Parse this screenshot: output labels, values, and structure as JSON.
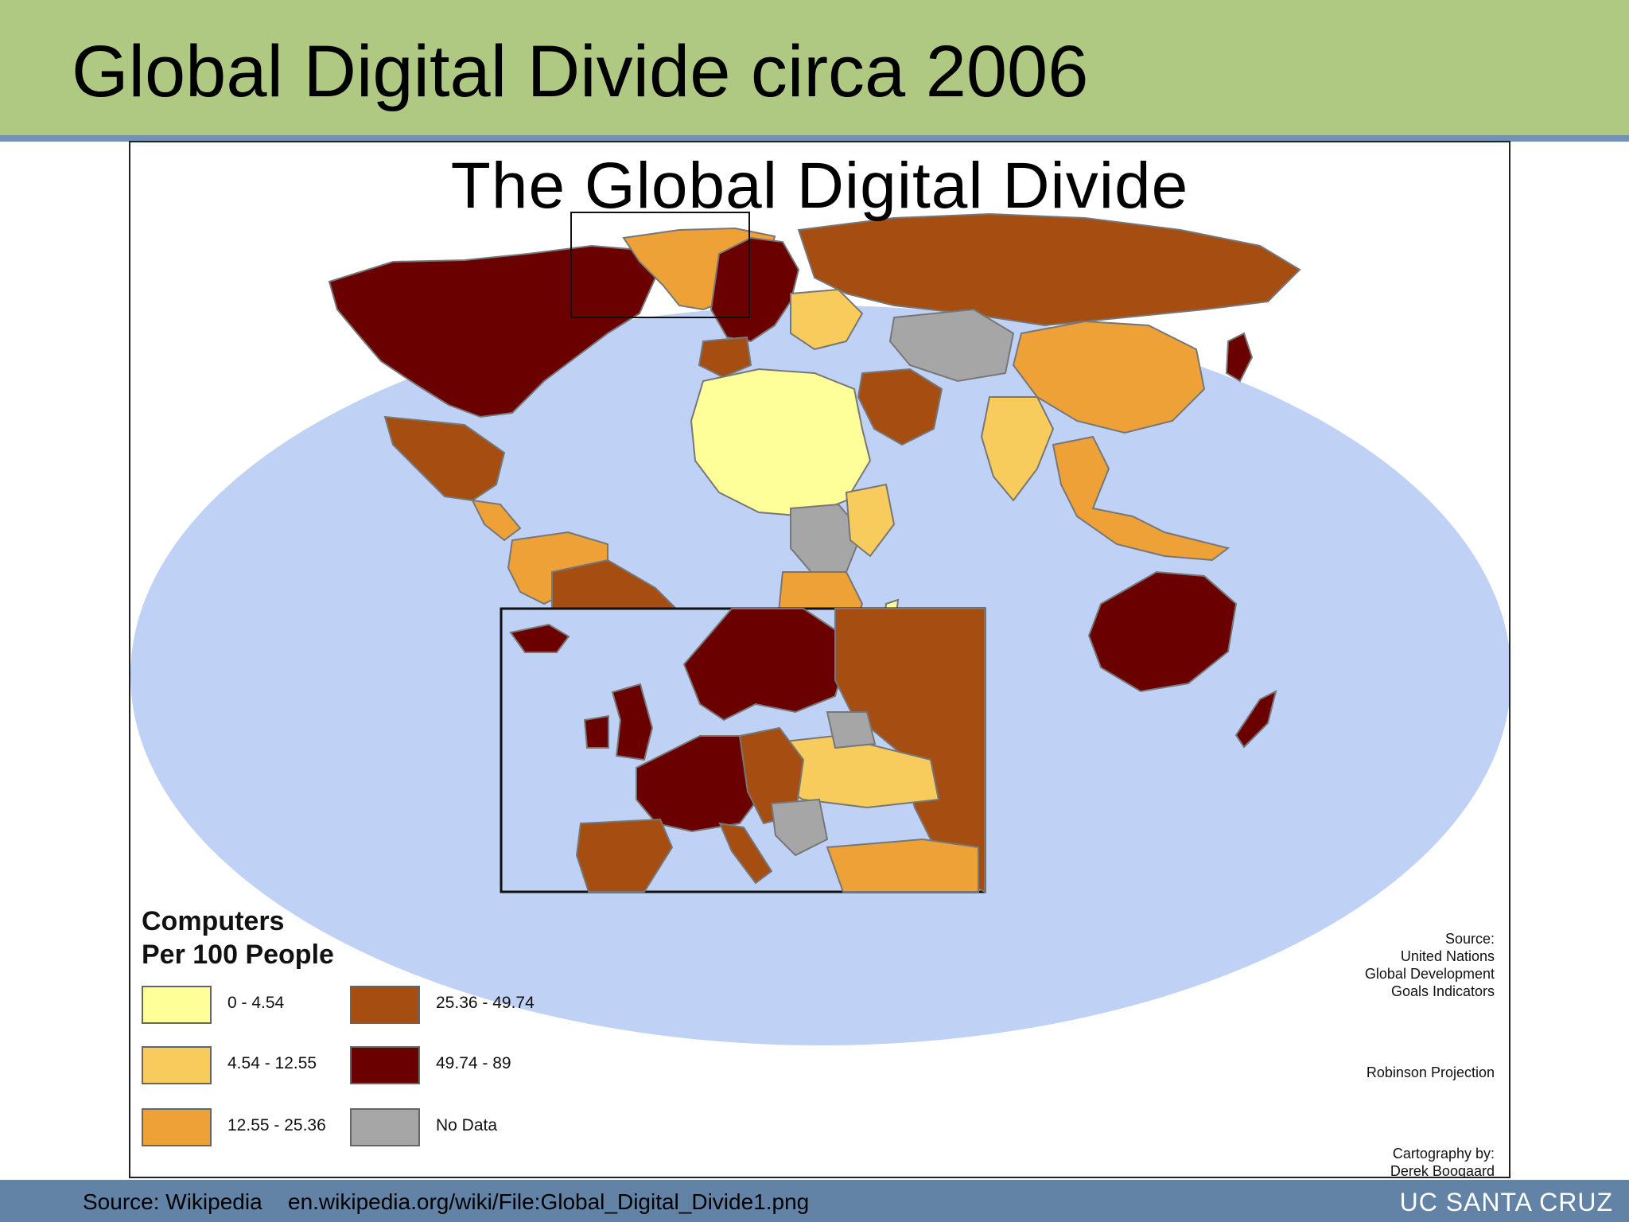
{
  "slide": {
    "title": "Global Digital Divide circa 2006"
  },
  "map": {
    "title": "The Global Digital Divide",
    "legend": {
      "title_line1": "Computers",
      "title_line2": "Per 100 People",
      "items": [
        {
          "label": "0 - 4.54",
          "color": "#ffff99"
        },
        {
          "label": "4.54 - 12.55",
          "color": "#f8cc5c"
        },
        {
          "label": "12.55 - 25.36",
          "color": "#eea136"
        },
        {
          "label": "25.36 - 49.74",
          "color": "#a64d11"
        },
        {
          "label": "49.74 - 89",
          "color": "#6b0000"
        },
        {
          "label": "No Data",
          "color": "#a6a6a6"
        }
      ]
    },
    "credits": {
      "source_label": "Source:",
      "source_line1": "United Nations",
      "source_line2": "Global Development",
      "source_line3": "Goals Indicators",
      "projection": "Robinson Projection",
      "cartography_label": "Cartography by:",
      "cartographer": "Derek Boogaard"
    },
    "ocean_color": "#bfd1f5"
  },
  "footer": {
    "source": "Source: Wikipedia",
    "url": "en.wikipedia.org/wiki/File:Global_Digital_Divide1.png",
    "brand": "UC SANTA CRUZ"
  }
}
